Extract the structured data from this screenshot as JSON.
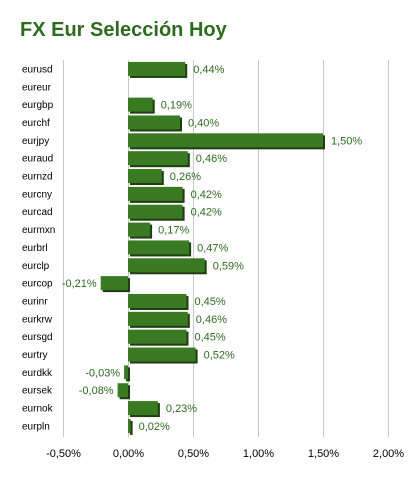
{
  "title": "FX Eur Selección Hoy",
  "colors": {
    "bar": "#3a7a22",
    "bar_shadow": "#1f3d12",
    "label": "#2d6b1f",
    "grid": "#c8c8c8",
    "title": "#2d6b1f"
  },
  "chart_data": {
    "type": "bar",
    "orientation": "horizontal",
    "title": "FX Eur Selección Hoy",
    "categories": [
      "eurusd",
      "eureur",
      "eurgbp",
      "eurchf",
      "eurjpy",
      "euraud",
      "eurnzd",
      "eurcny",
      "eurcad",
      "eurmxn",
      "eurbrl",
      "eurclp",
      "eurcop",
      "eurinr",
      "eurkrw",
      "eursgd",
      "eurtry",
      "eurdkk",
      "eursek",
      "eurnok",
      "eurpln"
    ],
    "values": [
      0.44,
      null,
      0.19,
      0.4,
      1.5,
      0.46,
      0.26,
      0.42,
      0.42,
      0.17,
      0.47,
      0.59,
      -0.21,
      0.45,
      0.46,
      0.45,
      0.52,
      -0.03,
      -0.08,
      0.23,
      0.02
    ],
    "value_labels": [
      "0,44%",
      "",
      "0,19%",
      "0,40%",
      "1,50%",
      "0,46%",
      "0,26%",
      "0,42%",
      "0,42%",
      "0,17%",
      "0,47%",
      "0,59%",
      "-0,21%",
      "0,45%",
      "0,46%",
      "0,45%",
      "0,52%",
      "-0,03%",
      "-0,08%",
      "0,23%",
      "0,02%"
    ],
    "x_ticks": [
      -0.5,
      0,
      0.5,
      1.0,
      1.5,
      2.0
    ],
    "x_tick_labels": [
      "-0,50%",
      "0,00%",
      "0,50%",
      "1,00%",
      "1,50%",
      "2,00%"
    ],
    "xlim": [
      -0.5,
      2.0
    ],
    "grid": true,
    "legend": "none"
  }
}
